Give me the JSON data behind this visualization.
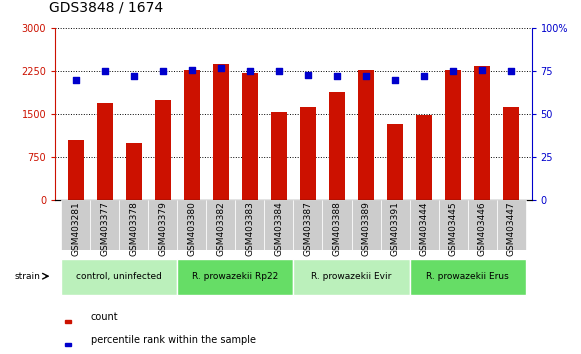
{
  "title": "GDS3848 / 1674",
  "samples": [
    "GSM403281",
    "GSM403377",
    "GSM403378",
    "GSM403379",
    "GSM403380",
    "GSM403382",
    "GSM403383",
    "GSM403384",
    "GSM403387",
    "GSM403388",
    "GSM403389",
    "GSM403391",
    "GSM403444",
    "GSM403445",
    "GSM403446",
    "GSM403447"
  ],
  "counts": [
    1050,
    1700,
    1000,
    1750,
    2270,
    2370,
    2220,
    1540,
    1620,
    1880,
    2270,
    1330,
    1480,
    2280,
    2350,
    1620
  ],
  "percentiles": [
    70,
    75,
    72,
    75,
    76,
    77,
    75,
    75,
    73,
    72,
    72,
    70,
    72,
    75,
    76,
    75
  ],
  "groups": [
    {
      "label": "control, uninfected",
      "start": 0,
      "end": 4
    },
    {
      "label": "R. prowazekii Rp22",
      "start": 4,
      "end": 8
    },
    {
      "label": "R. prowazekii Evir",
      "start": 8,
      "end": 12
    },
    {
      "label": "R. prowazekii Erus",
      "start": 12,
      "end": 16
    }
  ],
  "group_colors": [
    "#bbf0bb",
    "#66dd66",
    "#bbf0bb",
    "#66dd66"
  ],
  "ylim_left": [
    0,
    3000
  ],
  "ylim_right": [
    0,
    100
  ],
  "yticks_left": [
    0,
    750,
    1500,
    2250,
    3000
  ],
  "yticks_right": [
    0,
    25,
    50,
    75,
    100
  ],
  "bar_color": "#cc1100",
  "dot_color": "#0000cc",
  "bg_color": "#ffffff",
  "xtick_bg": "#cccccc",
  "tick_label_fontsize": 6.5,
  "title_fontsize": 10
}
